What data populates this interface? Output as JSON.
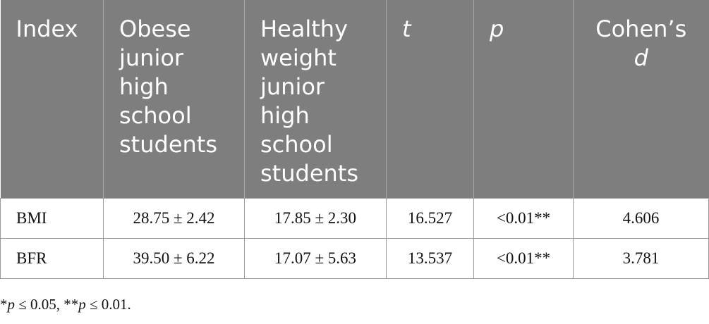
{
  "table": {
    "headers": [
      {
        "text": "Index",
        "italic": false
      },
      {
        "text": "Obese junior high school students",
        "italic": false
      },
      {
        "text": "Healthy weight junior high school students",
        "italic": false
      },
      {
        "text": "t",
        "italic": true
      },
      {
        "text": "p",
        "italic": true
      },
      {
        "text": "Cohen’s d",
        "italic": false
      }
    ],
    "header_cohen_prefix": "Cohen’s",
    "header_cohen_d": "d",
    "rows": [
      [
        "BMI",
        "28.75 ± 2.42",
        "17.85 ± 2.30",
        "16.527",
        "<0.01**",
        "4.606"
      ],
      [
        "BFR",
        "39.50 ± 6.22",
        "17.07 ± 5.63",
        "13.537",
        "<0.01**",
        "3.781"
      ]
    ]
  },
  "footnote": {
    "star1": "*",
    "p1": "p",
    "cond1": " ≤ 0.05, **",
    "p2": "p",
    "cond2": " ≤ 0.01."
  },
  "colors": {
    "header_bg": "#7d7e7d",
    "header_text": "#ffffff",
    "border": "#9a9a9a"
  }
}
